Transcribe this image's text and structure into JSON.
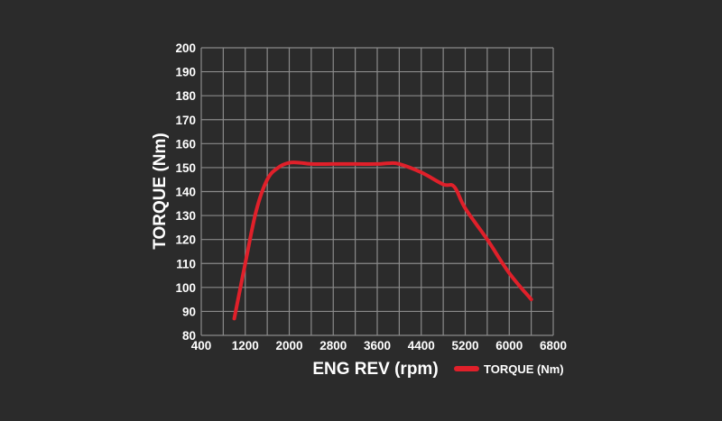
{
  "colors": {
    "background": "#2b2b2b",
    "grid": "#8a8a8a",
    "text": "#ffffff",
    "series": "#e0202a"
  },
  "chart_data": {
    "type": "line",
    "xlabel": "ENG REV (rpm)",
    "ylabel": "TORQUE (Nm)",
    "xlim": [
      400,
      6800
    ],
    "ylim": [
      80,
      200
    ],
    "x_ticks": [
      400,
      1200,
      2000,
      2800,
      3600,
      4400,
      5200,
      6000,
      6800
    ],
    "y_ticks": [
      80,
      90,
      100,
      110,
      120,
      130,
      140,
      150,
      160,
      170,
      180,
      190,
      200
    ],
    "grid": true,
    "legend_position": "bottom-right",
    "series": [
      {
        "name": "TORQUE (Nm)",
        "color": "#e0202a",
        "x": [
          1000,
          1200,
          1400,
          1600,
          1800,
          2000,
          2200,
          2400,
          2800,
          3200,
          3600,
          3800,
          4000,
          4400,
          4800,
          5000,
          5200,
          5600,
          6000,
          6400
        ],
        "y": [
          87,
          110,
          132,
          145,
          150,
          152,
          152,
          151.5,
          151.5,
          151.5,
          151.5,
          151.8,
          151.5,
          148,
          143,
          142,
          133,
          120,
          106,
          95
        ]
      }
    ]
  }
}
